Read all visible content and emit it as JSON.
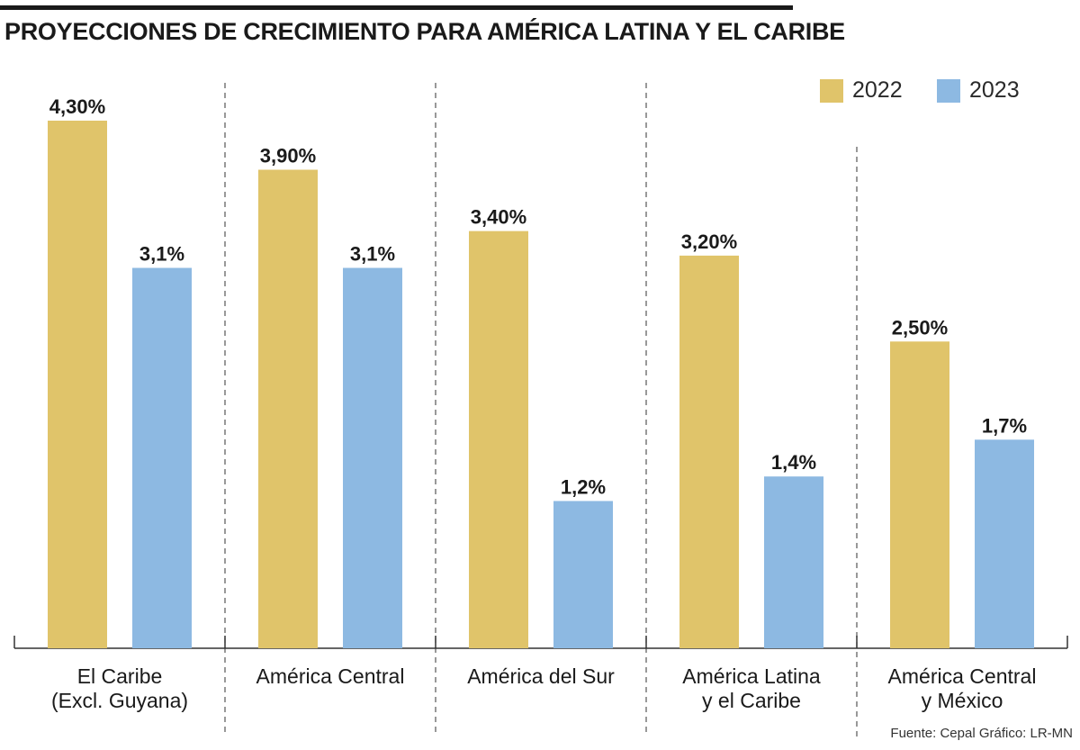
{
  "title": "PROYECCIONES DE CRECIMIENTO PARA AMÉRICA LATINA Y EL CARIBE",
  "source": "Fuente: Cepal  Gráfico: LR-MN",
  "colors": {
    "2022": "#E0C46A",
    "2023": "#8DB9E2"
  },
  "chart_data": {
    "type": "bar",
    "title": "PROYECCIONES DE CRECIMIENTO PARA AMÉRICA LATINA Y EL CARIBE",
    "xlabel": "",
    "ylabel": "",
    "ylim": [
      0,
      4.5
    ],
    "legend_position": "top-right",
    "grid": false,
    "categories": [
      [
        "El Caribe",
        "(Excl. Guyana)"
      ],
      [
        "América Central"
      ],
      [
        "América del Sur"
      ],
      [
        "América Latina",
        "y el Caribe"
      ],
      [
        "América Central",
        "y México"
      ]
    ],
    "series": [
      {
        "name": "2022",
        "values": [
          4.3,
          3.9,
          3.4,
          3.2,
          2.5
        ],
        "labels": [
          "4,30%",
          "3,90%",
          "3,40%",
          "3,20%",
          "2,50%"
        ]
      },
      {
        "name": "2023",
        "values": [
          3.1,
          3.1,
          1.2,
          1.4,
          1.7
        ],
        "labels": [
          "3,1%",
          "3,1%",
          "1,2%",
          "1,4%",
          "1,7%"
        ]
      }
    ]
  }
}
